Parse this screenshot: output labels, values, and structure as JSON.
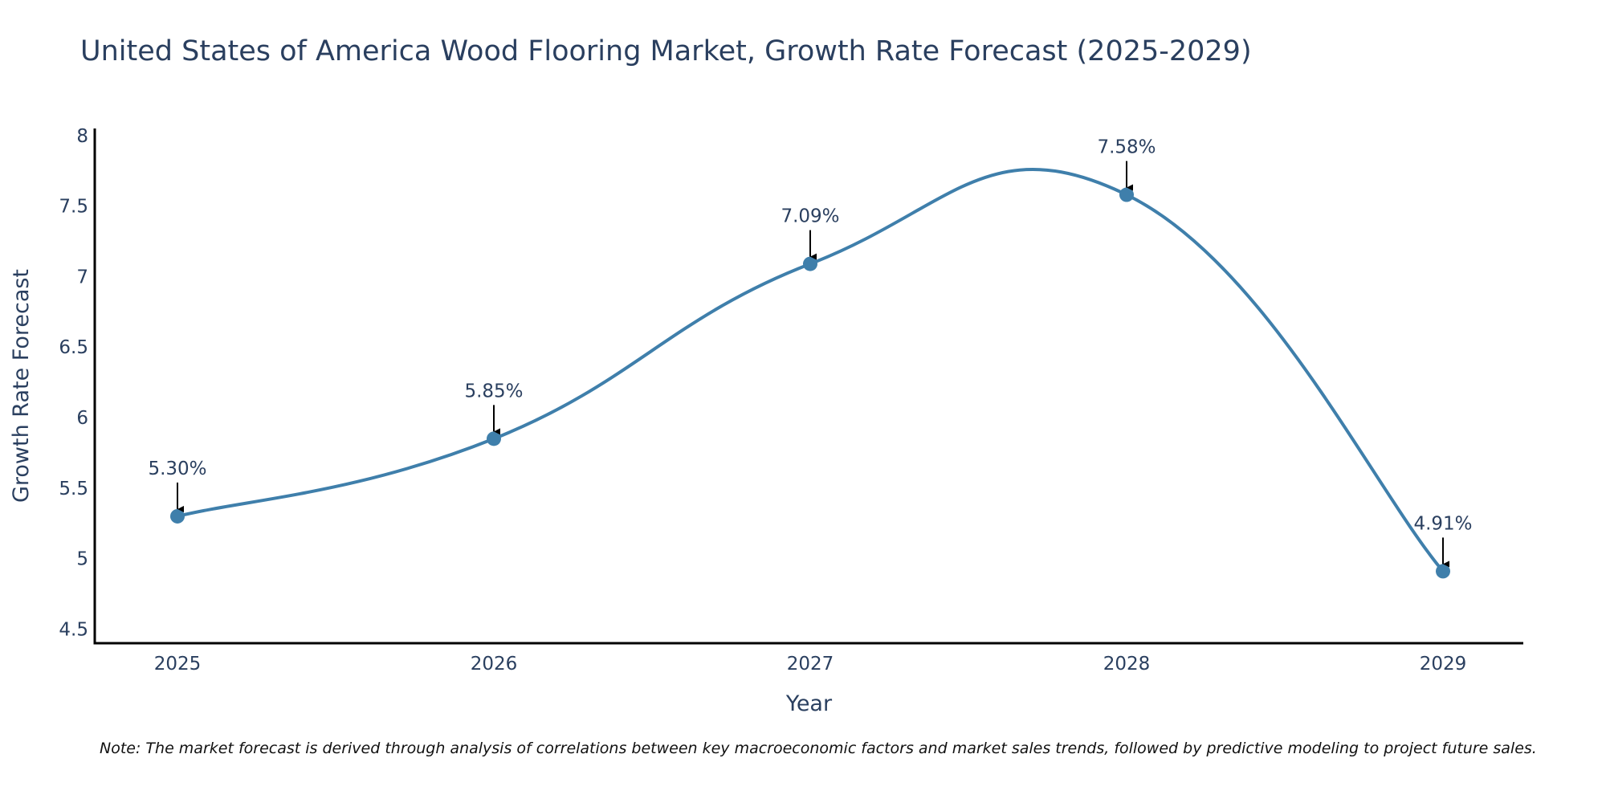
{
  "chart_data": {
    "type": "line",
    "title": "United States of America Wood Flooring Market, Growth Rate Forecast (2025-2029)",
    "xlabel": "Year",
    "ylabel": "Growth Rate Forecast",
    "categories": [
      "2025",
      "2026",
      "2027",
      "2028",
      "2029"
    ],
    "values": [
      5.3,
      5.85,
      7.09,
      7.58,
      4.91
    ],
    "data_labels": [
      "5.30%",
      "5.85%",
      "7.09%",
      "7.58%",
      "4.91%"
    ],
    "ylim": [
      4.4,
      8.05
    ],
    "yticks": [
      4.5,
      5,
      5.5,
      6,
      6.5,
      7,
      7.5,
      8
    ],
    "ytick_labels": [
      "4.5",
      "5",
      "5.5",
      "6",
      "6.5",
      "7",
      "7.5",
      "8"
    ],
    "line_shape": "spline",
    "grid": false,
    "line_color": "#3f7fab",
    "marker_color": "#3f7fab"
  },
  "note": "Note: The market forecast is derived through analysis of correlations between key macroeconomic factors and market sales trends, followed by predictive modeling to project future sales."
}
